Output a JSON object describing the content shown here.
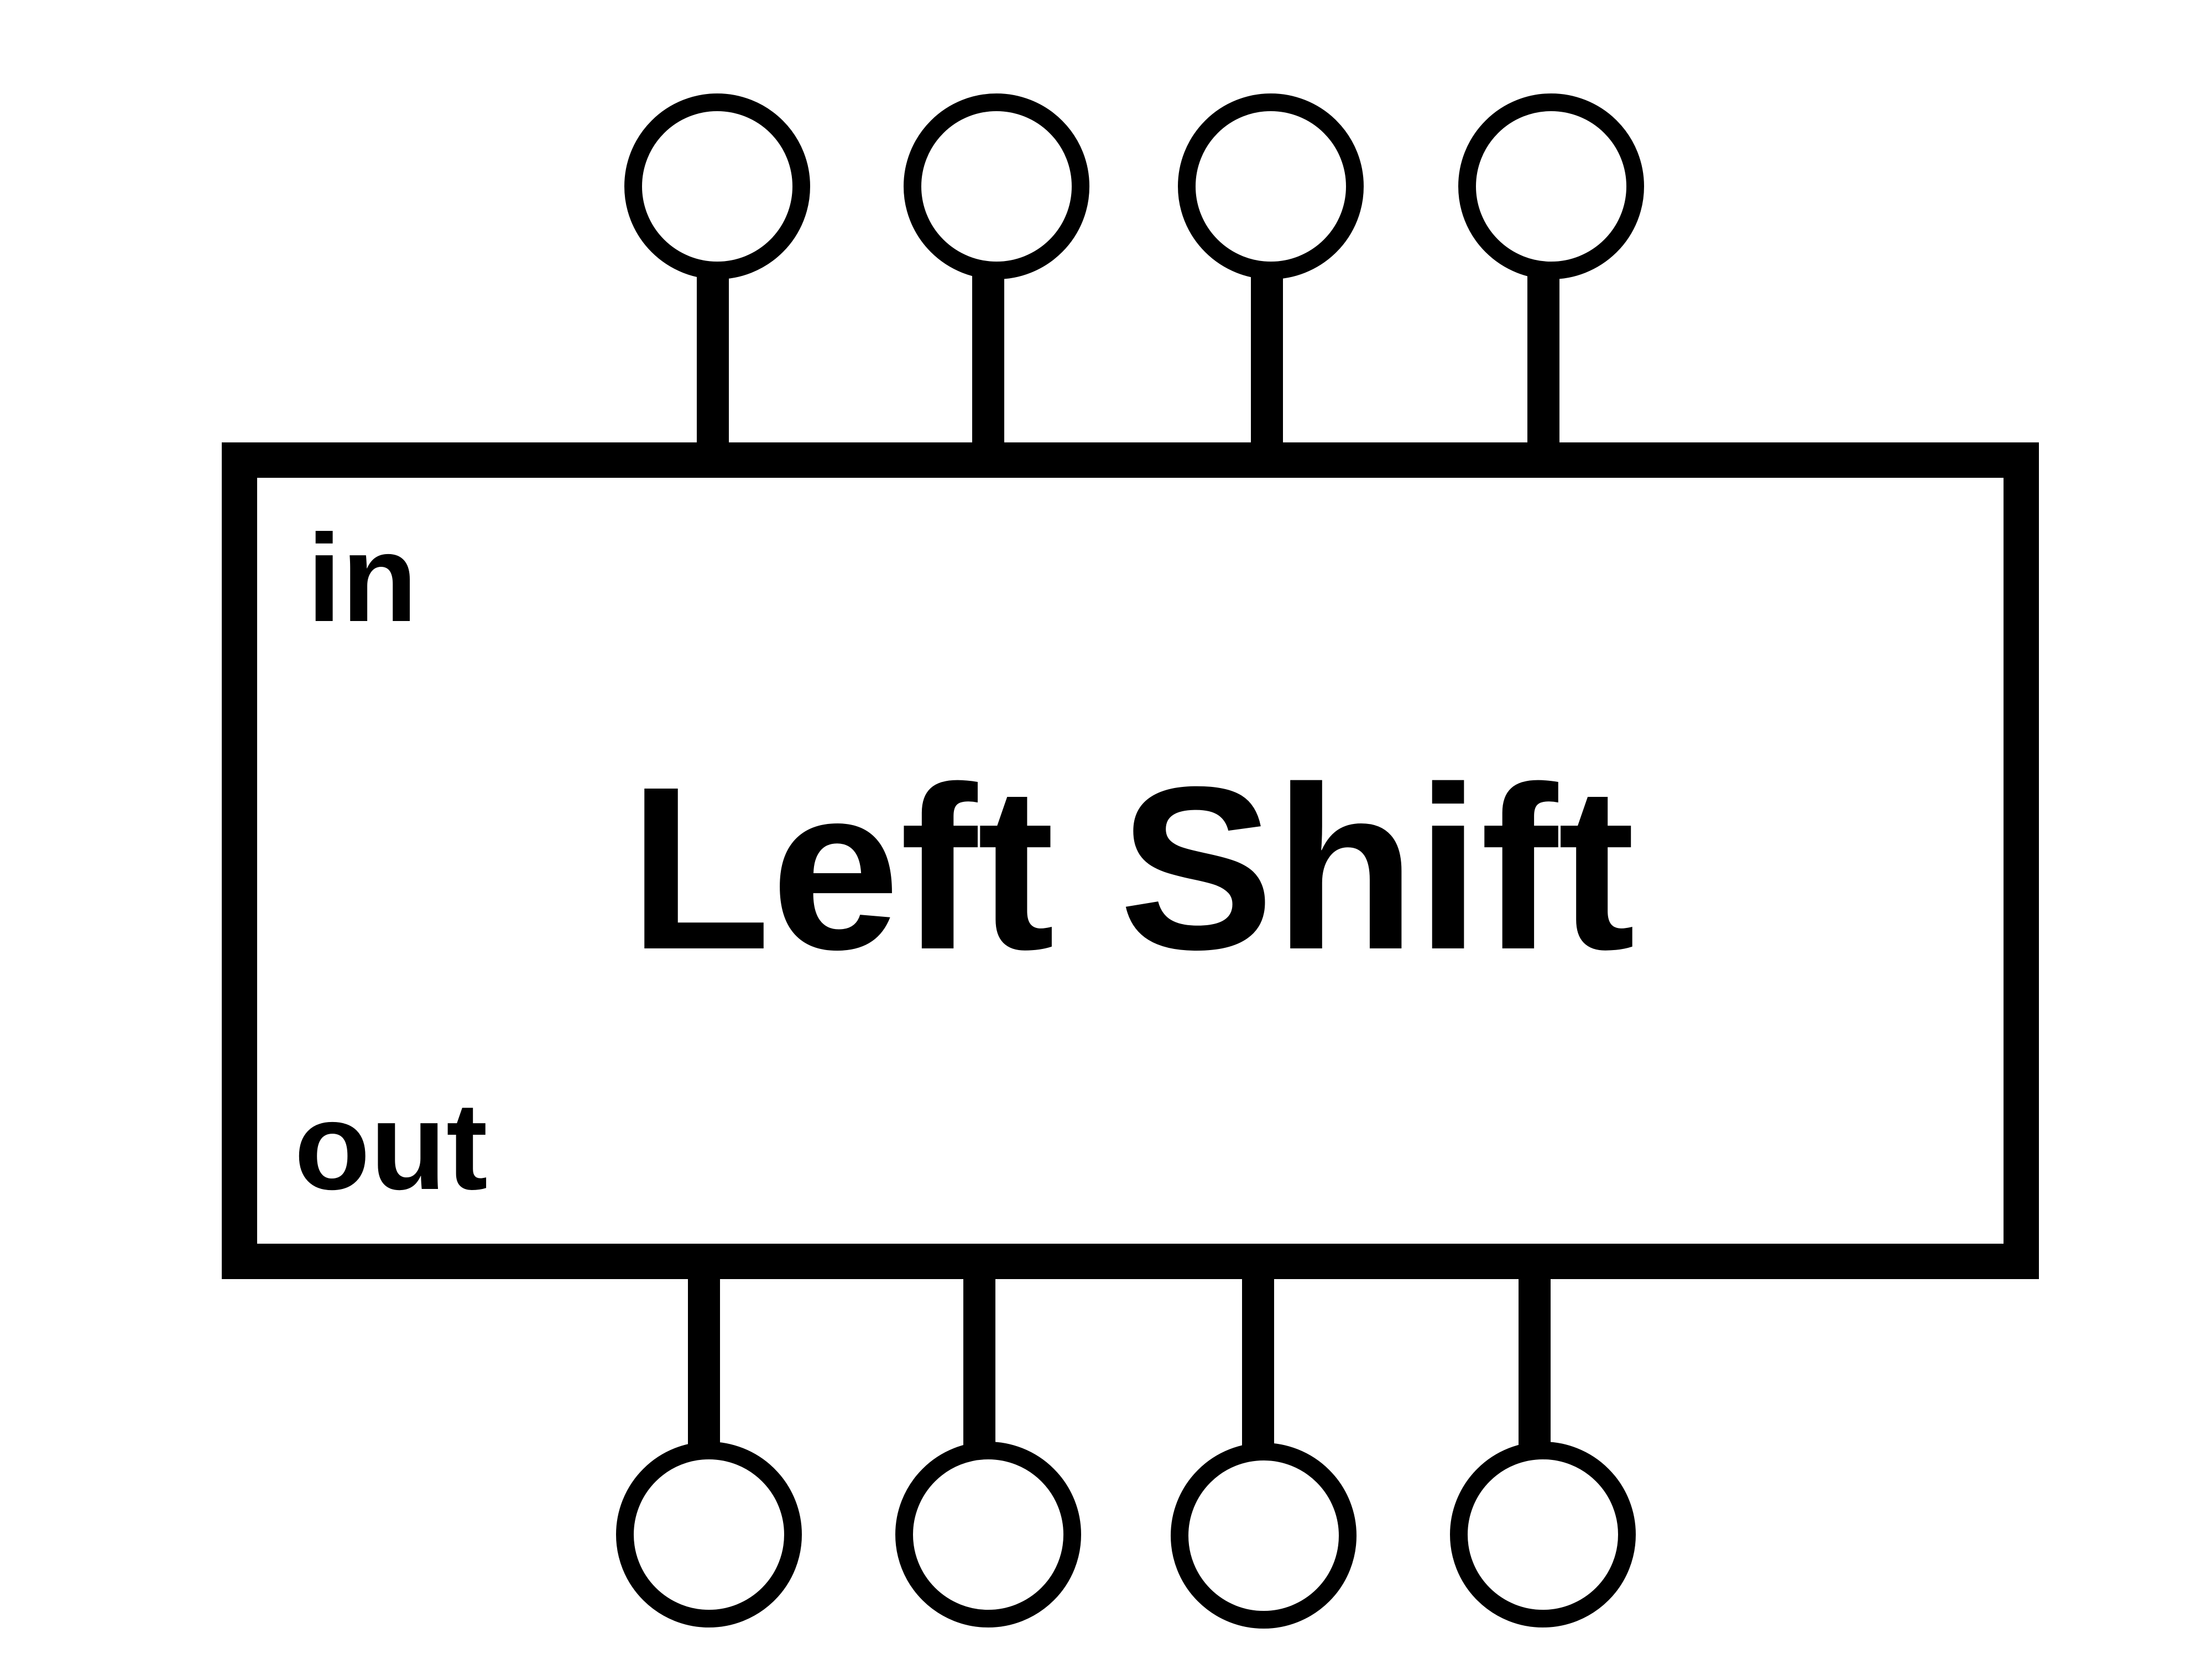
{
  "block": {
    "title": "Left Shift",
    "input_label": "in",
    "output_label": "out"
  },
  "pins": {
    "input_count": 4,
    "output_count": 4
  },
  "colors": {
    "stroke": "#000000",
    "fill": "#ffffff"
  }
}
